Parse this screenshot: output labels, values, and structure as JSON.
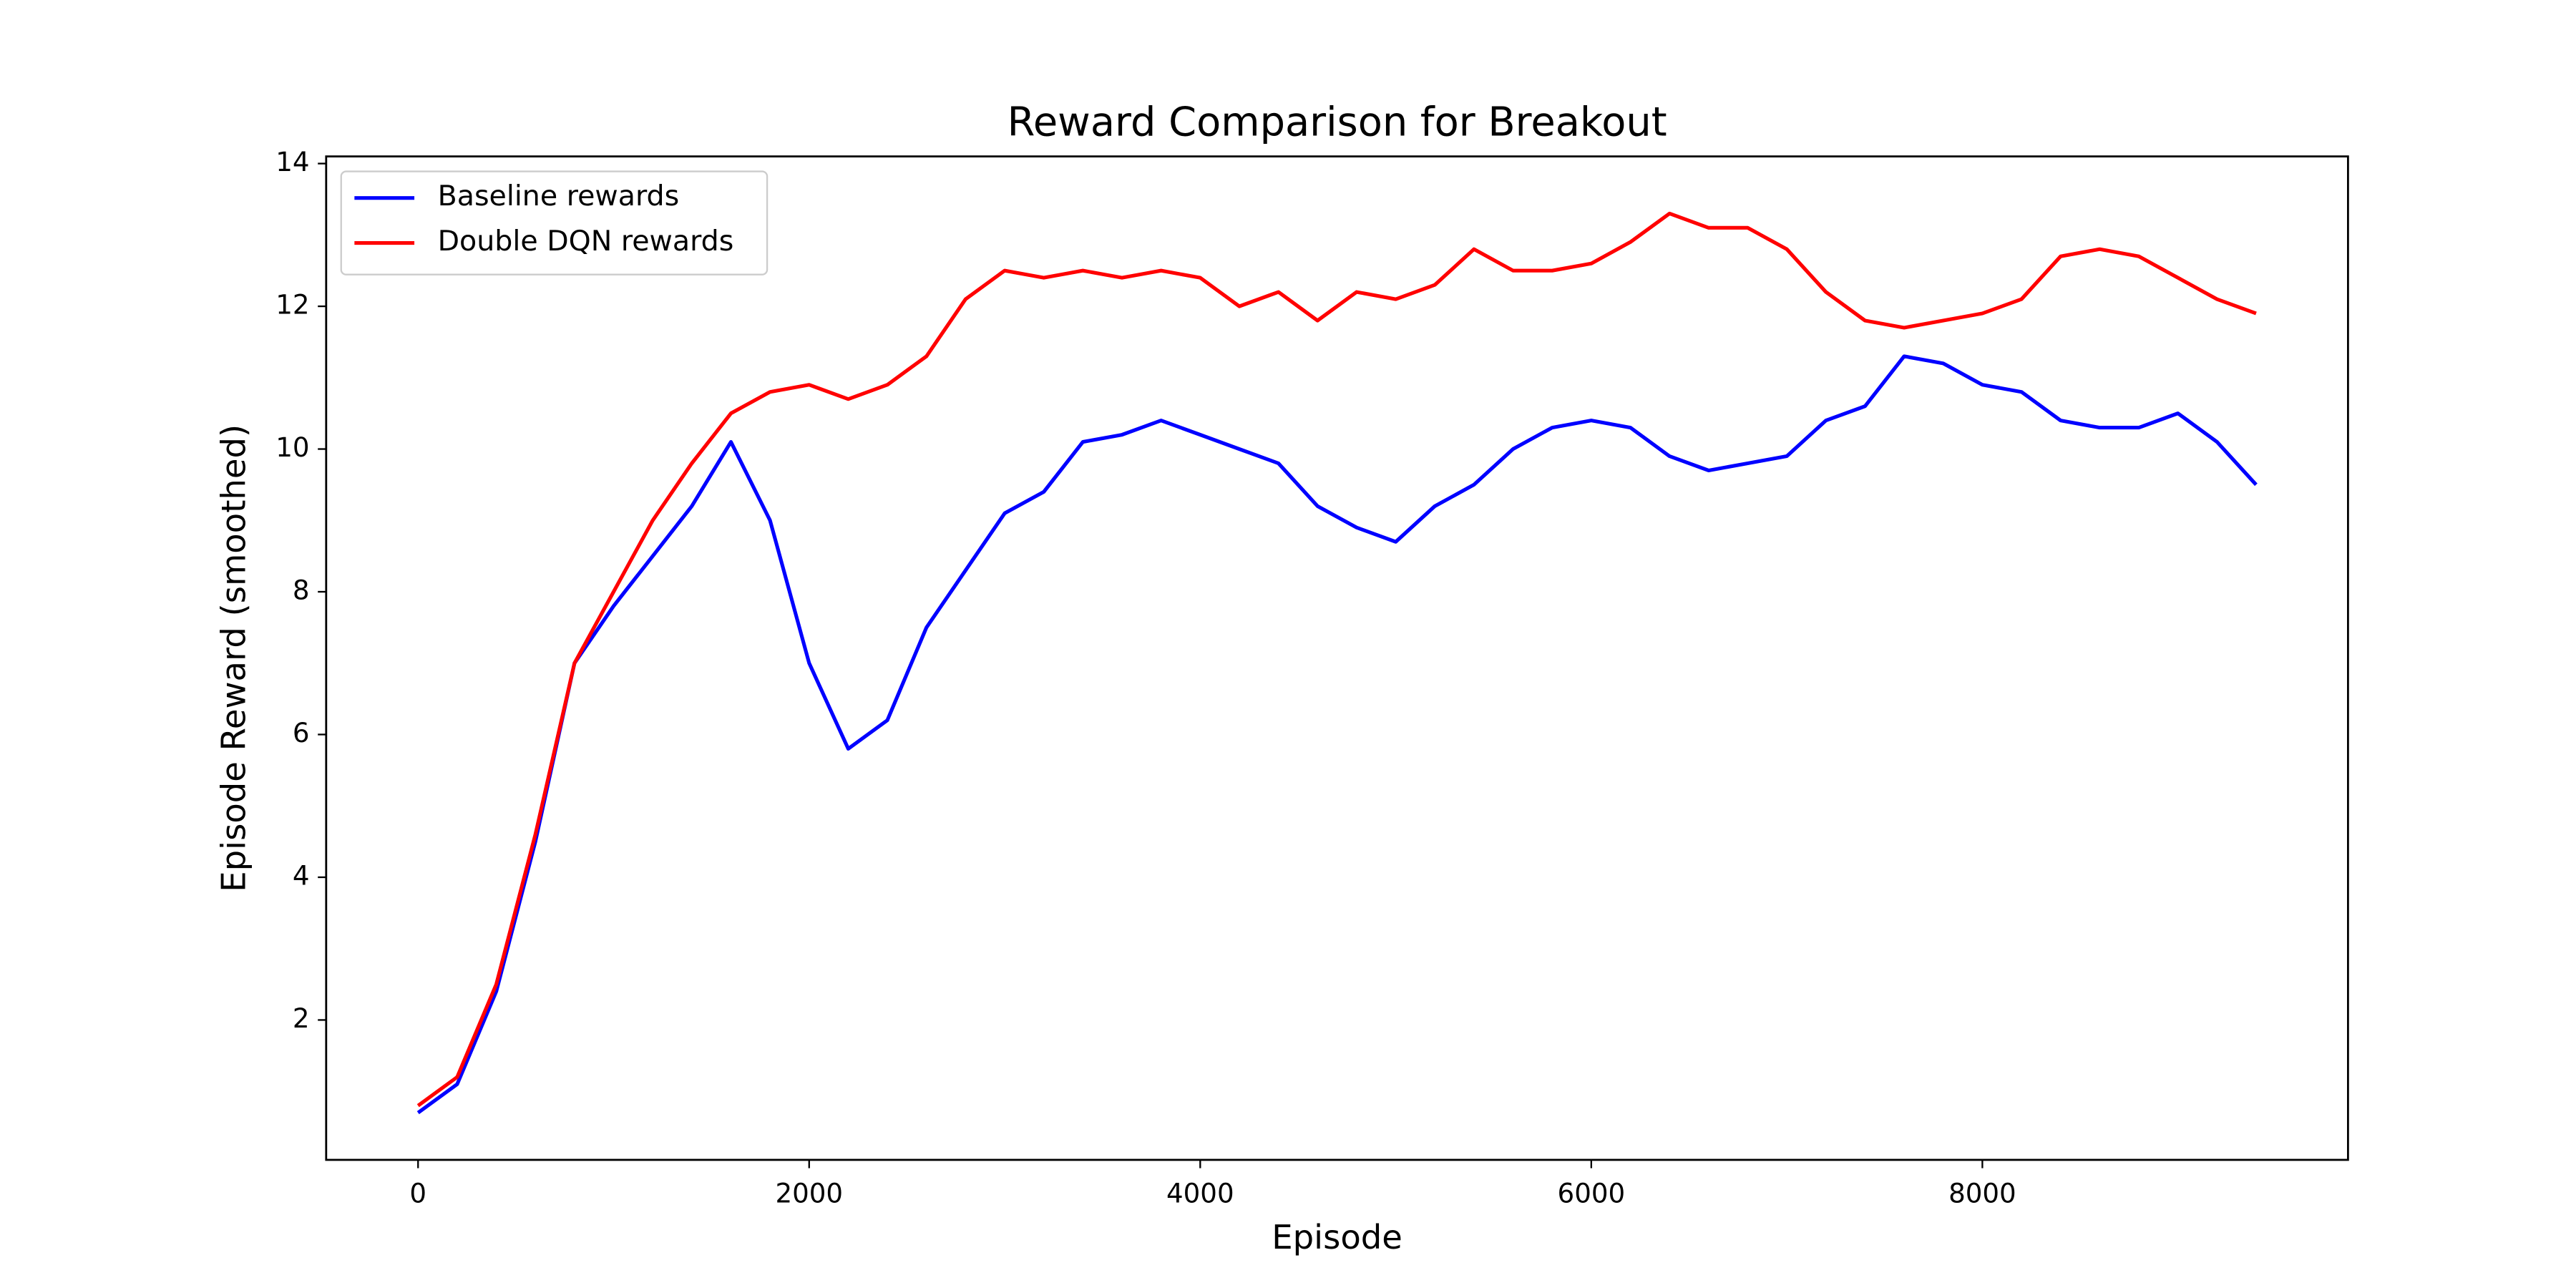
{
  "chart_data": {
    "type": "line",
    "title": "Reward Comparison for Breakout",
    "xlabel": "Episode",
    "ylabel": "Episode Reward (smoothed)",
    "x": [
      0,
      200,
      400,
      600,
      800,
      1000,
      1200,
      1400,
      1600,
      1800,
      2000,
      2200,
      2400,
      2600,
      2800,
      3000,
      3200,
      3400,
      3600,
      3800,
      4000,
      4200,
      4400,
      4600,
      4800,
      5000,
      5200,
      5400,
      5600,
      5800,
      6000,
      6200,
      6400,
      6600,
      6800,
      7000,
      7200,
      7400,
      7600,
      7800,
      8000,
      8200,
      8400,
      8600,
      8800,
      9000,
      9200,
      9400
    ],
    "series": [
      {
        "name": "Baseline rewards",
        "color": "#0000ff",
        "values": [
          0.7,
          1.1,
          2.4,
          4.5,
          7.0,
          7.8,
          8.5,
          9.2,
          10.1,
          9.0,
          7.0,
          5.8,
          6.2,
          7.5,
          8.3,
          9.1,
          9.4,
          10.1,
          10.2,
          10.4,
          10.2,
          10.0,
          9.8,
          9.2,
          8.9,
          8.7,
          9.2,
          9.5,
          10.0,
          10.3,
          10.4,
          10.3,
          9.9,
          9.7,
          9.8,
          9.9,
          10.4,
          10.6,
          11.3,
          11.2,
          10.9,
          10.8,
          10.4,
          10.3,
          10.3,
          10.5,
          10.1,
          9.5
        ]
      },
      {
        "name": "Double DQN rewards",
        "color": "#ff0000",
        "values": [
          0.8,
          1.2,
          2.5,
          4.6,
          7.0,
          8.0,
          9.0,
          9.8,
          10.5,
          10.8,
          10.9,
          10.7,
          10.9,
          11.3,
          12.1,
          12.5,
          12.4,
          12.5,
          12.4,
          12.5,
          12.4,
          12.0,
          12.2,
          11.8,
          12.2,
          12.1,
          12.3,
          12.8,
          12.5,
          12.5,
          12.6,
          12.9,
          13.3,
          13.1,
          13.1,
          12.8,
          12.2,
          11.8,
          11.7,
          11.8,
          11.9,
          12.1,
          12.7,
          12.8,
          12.7,
          12.4,
          12.1,
          11.9
        ]
      }
    ],
    "xlim": [
      -470,
      9870
    ],
    "ylim": [
      0.04,
      14.1
    ],
    "xticks": [
      0,
      2000,
      4000,
      6000,
      8000
    ],
    "yticks": [
      2,
      4,
      6,
      8,
      10,
      12,
      14
    ],
    "legend": "upper left"
  }
}
